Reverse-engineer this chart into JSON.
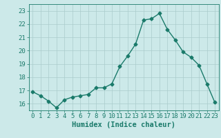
{
  "x": [
    0,
    1,
    2,
    3,
    4,
    5,
    6,
    7,
    8,
    9,
    10,
    11,
    12,
    13,
    14,
    15,
    16,
    17,
    18,
    19,
    20,
    21,
    22,
    23
  ],
  "y": [
    16.9,
    16.6,
    16.2,
    15.7,
    16.3,
    16.5,
    16.6,
    16.7,
    17.2,
    17.2,
    17.5,
    18.8,
    19.6,
    20.5,
    22.3,
    22.4,
    22.8,
    21.6,
    20.8,
    19.9,
    19.5,
    18.9,
    17.5,
    16.1
  ],
  "line_color": "#1a7a6a",
  "marker": "D",
  "marker_size": 2.5,
  "bg_color": "#cce9e9",
  "grid_color": "#aacccc",
  "xlabel": "Humidex (Indice chaleur)",
  "ylim": [
    15.5,
    23.5
  ],
  "yticks": [
    16,
    17,
    18,
    19,
    20,
    21,
    22,
    23
  ],
  "xlim": [
    -0.5,
    23.5
  ],
  "xticks": [
    0,
    1,
    2,
    3,
    4,
    5,
    6,
    7,
    8,
    9,
    10,
    11,
    12,
    13,
    14,
    15,
    16,
    17,
    18,
    19,
    20,
    21,
    22,
    23
  ],
  "tick_label_fontsize": 6.5,
  "xlabel_fontsize": 7.5,
  "line_width": 1.0
}
